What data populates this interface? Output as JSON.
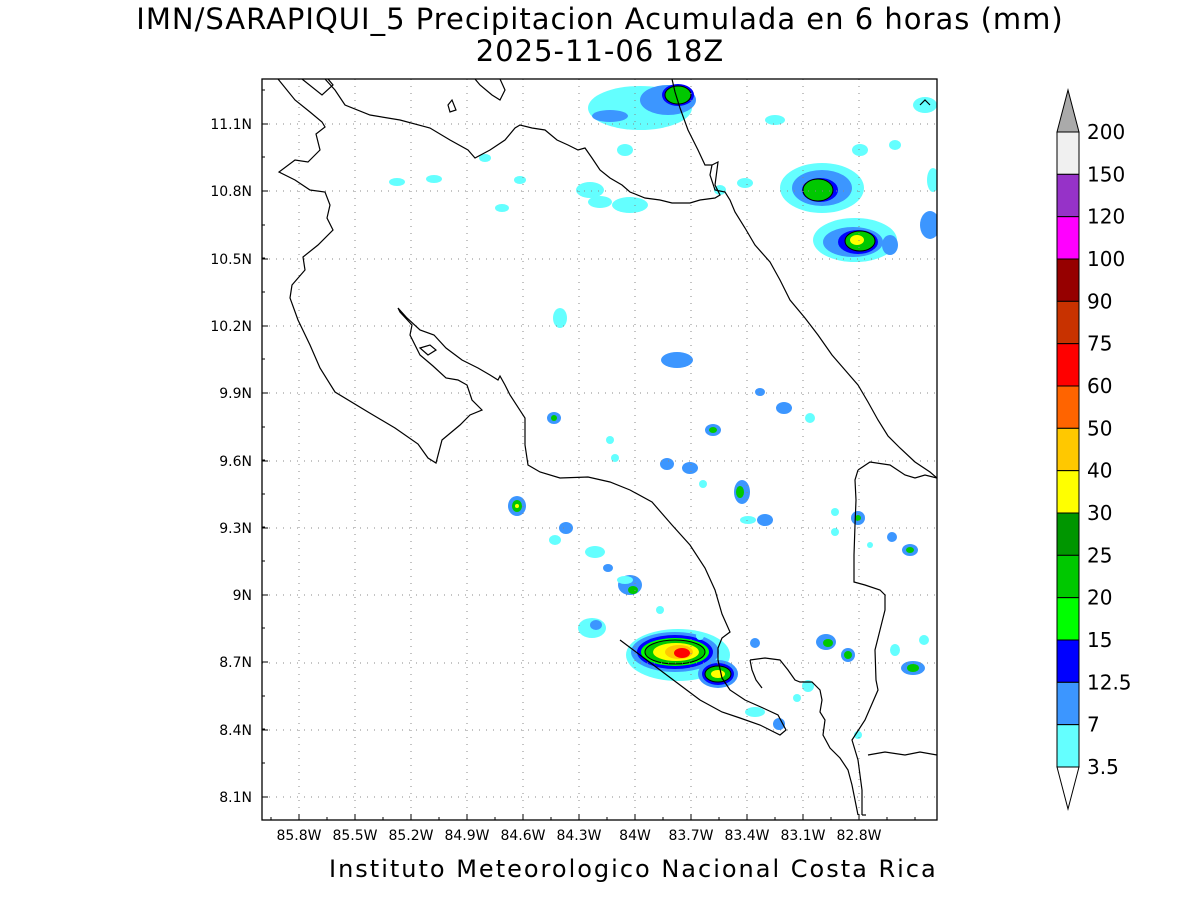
{
  "title": "IMN/SARAPIQUI_5 Precipitacion Acumulada en 6 horas (mm)",
  "subtitle": "2025-11-06 18Z",
  "footer": "Instituto Meteorologico Nacional Costa Rica",
  "lon_labels": [
    "85.8W",
    "85.5W",
    "85.2W",
    "84.9W",
    "84.6W",
    "84.3W",
    "84W",
    "83.7W",
    "83.4W",
    "83.1W",
    "82.8W"
  ],
  "lat_labels": [
    "11.1N",
    "10.8N",
    "10.5N",
    "10.2N",
    "9.9N",
    "9.6N",
    "9.3N",
    "9N",
    "8.7N",
    "8.4N",
    "8.1N"
  ],
  "colorbar": {
    "labels": [
      "3.5",
      "7",
      "12.5",
      "15",
      "20",
      "25",
      "30",
      "40",
      "50",
      "60",
      "75",
      "90",
      "100",
      "120",
      "150",
      "200"
    ],
    "colors": [
      "#ffffff",
      "#64ffff",
      "#3c96ff",
      "#0000ff",
      "#00ff00",
      "#00c800",
      "#009600",
      "#ffff00",
      "#ffc800",
      "#ff6400",
      "#ff0000",
      "#c83200",
      "#960000",
      "#ff00ff",
      "#9632c8",
      "#f0f0f0",
      "#aaaaaa"
    ]
  },
  "map": {
    "projection": "lat-lon",
    "lon_range": [
      "86W",
      "82.6W"
    ],
    "lat_range": [
      "8.0N",
      "11.3N"
    ],
    "grid": "dotted"
  }
}
